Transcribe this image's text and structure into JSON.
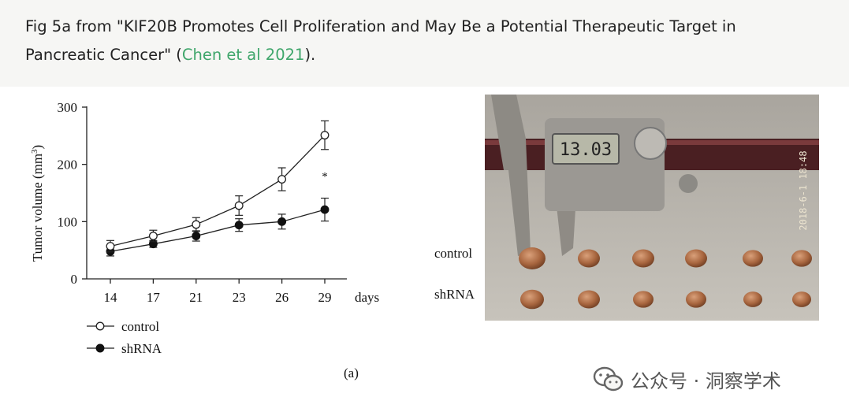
{
  "caption": {
    "prefix": "Fig 5a from \"KIF20B Promotes Cell Proliferation and May Be a Potential Therapeutic Target in Pancreatic Cancer\" (",
    "link_text": "Chen et al 2021",
    "suffix": ")."
  },
  "panel_label": "(a)",
  "photo": {
    "caliper_reading": "13.03",
    "timestamp": "2018-6-1 18:48",
    "row_labels": [
      "control",
      "shRNA"
    ]
  },
  "watermark": "公众号 · 洞察学术",
  "chart_data": {
    "type": "line",
    "ylabel": "Tumor volume (mm3)",
    "xlabel": "days",
    "categories": [
      "14",
      "17",
      "21",
      "23",
      "26",
      "29"
    ],
    "ylim": [
      0,
      300
    ],
    "yticks": [
      0,
      100,
      200,
      300
    ],
    "grid": false,
    "legend_position": "bottom-left",
    "significance_marker": "*",
    "series": [
      {
        "name": "control",
        "marker": "open-circle",
        "values": [
          57,
          75,
          95,
          128,
          174,
          251
        ],
        "errors": [
          10,
          10,
          12,
          17,
          20,
          25
        ]
      },
      {
        "name": "shRNA",
        "marker": "filled-circle",
        "values": [
          48,
          61,
          75,
          94,
          100,
          121
        ],
        "errors": [
          8,
          6,
          9,
          11,
          13,
          20
        ]
      }
    ]
  }
}
